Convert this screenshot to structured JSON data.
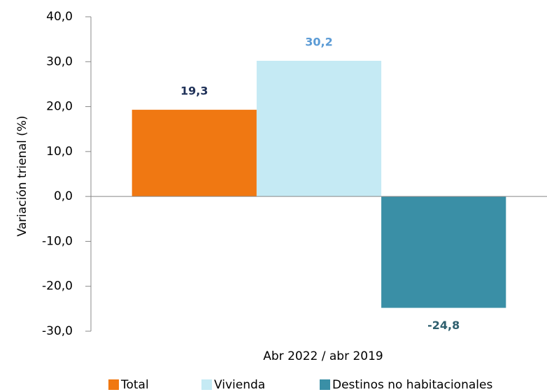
{
  "chart_data": {
    "type": "bar",
    "y_label": "Variación trienal (%)",
    "categories": [
      "Abr 2022 / abr 2019"
    ],
    "series": [
      {
        "name": "Total",
        "color": "#f07812",
        "label_color": "#1f3158",
        "values": [
          19.3
        ],
        "value_labels": [
          "19,3"
        ]
      },
      {
        "name": "Vivienda",
        "color": "#c5eaf4",
        "label_color": "#5b9bd5",
        "values": [
          30.2
        ],
        "value_labels": [
          "30,2"
        ]
      },
      {
        "name": "Destinos no habitacionales",
        "color": "#3a8fa6",
        "label_color": "#2e5f6e",
        "values": [
          -24.8
        ],
        "value_labels": [
          "-24,8"
        ]
      }
    ],
    "ylim": [
      -30,
      40
    ],
    "yticks": [
      {
        "value": -30,
        "label": "-30,0"
      },
      {
        "value": -20,
        "label": "-20,0"
      },
      {
        "value": -10,
        "label": "-10,0"
      },
      {
        "value": 0,
        "label": "0,0"
      },
      {
        "value": 10,
        "label": "10,0"
      },
      {
        "value": 20,
        "label": "20,0"
      },
      {
        "value": 30,
        "label": "30,0"
      },
      {
        "value": 40,
        "label": "40,0"
      }
    ],
    "grid": false,
    "legend": "bottom"
  }
}
